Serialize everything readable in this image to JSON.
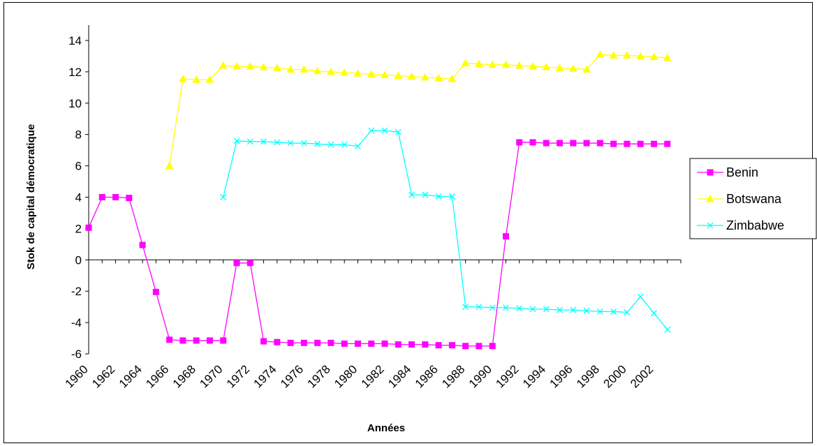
{
  "chart_data": {
    "type": "line",
    "title": "",
    "xlabel": "Années",
    "ylabel": "Stok de capital démocratique",
    "ylim": [
      -6,
      14
    ],
    "yticks": [
      14,
      12,
      10,
      8,
      6,
      4,
      2,
      0,
      -2,
      -4,
      -6
    ],
    "xlim": [
      1960,
      2004
    ],
    "xtick_labels": [
      "1960",
      "1962",
      "1964",
      "1966",
      "1968",
      "1970",
      "1972",
      "1974",
      "1976",
      "1978",
      "1980",
      "1982",
      "1984",
      "1986",
      "1988",
      "1990",
      "1992",
      "1994",
      "1996",
      "1998",
      "2000",
      "2002"
    ],
    "grid": false,
    "legend_position": "right",
    "x": [
      1960,
      1961,
      1962,
      1963,
      1964,
      1965,
      1966,
      1967,
      1968,
      1969,
      1970,
      1971,
      1972,
      1973,
      1974,
      1975,
      1976,
      1977,
      1978,
      1979,
      1980,
      1981,
      1982,
      1983,
      1984,
      1985,
      1986,
      1987,
      1988,
      1989,
      1990,
      1991,
      1992,
      1993,
      1994,
      1995,
      1996,
      1997,
      1998,
      1999,
      2000,
      2001,
      2002,
      2003,
      2004
    ],
    "series": [
      {
        "name": "Benin",
        "color": "#ff00ff",
        "marker": "square",
        "values": [
          2.05,
          4.0,
          4.0,
          3.95,
          0.95,
          -2.05,
          -5.1,
          -5.15,
          -5.15,
          -5.15,
          -5.15,
          -0.2,
          -0.2,
          -5.2,
          -5.25,
          -5.3,
          -5.3,
          -5.3,
          -5.3,
          -5.35,
          -5.35,
          -5.35,
          -5.35,
          -5.4,
          -5.4,
          -5.4,
          -5.45,
          -5.45,
          -5.5,
          -5.5,
          -5.5,
          1.5,
          7.5,
          7.5,
          7.45,
          7.45,
          7.45,
          7.45,
          7.45,
          7.4,
          7.4,
          7.4,
          7.4,
          7.4,
          null
        ]
      },
      {
        "name": "Botswana",
        "color": "#ffff00",
        "marker": "triangle",
        "values": [
          null,
          null,
          null,
          null,
          null,
          null,
          6.0,
          11.55,
          11.5,
          11.5,
          12.4,
          12.35,
          12.35,
          12.3,
          12.25,
          12.15,
          12.15,
          12.05,
          12.0,
          11.95,
          11.9,
          11.85,
          11.8,
          11.75,
          11.7,
          11.65,
          11.6,
          11.55,
          12.55,
          12.5,
          12.45,
          12.45,
          12.4,
          12.35,
          12.3,
          12.25,
          12.2,
          12.15,
          13.1,
          13.05,
          13.05,
          13.0,
          12.95,
          12.9,
          null
        ]
      },
      {
        "name": "Zimbabwe",
        "color": "#00ffff",
        "marker": "x",
        "values": [
          null,
          null,
          null,
          null,
          null,
          null,
          null,
          null,
          null,
          null,
          4.0,
          7.6,
          7.55,
          7.55,
          7.5,
          7.45,
          7.45,
          7.4,
          7.35,
          7.35,
          7.25,
          8.25,
          8.25,
          8.15,
          4.15,
          4.15,
          4.05,
          4.05,
          -3.0,
          -3.0,
          -3.05,
          -3.05,
          -3.1,
          -3.15,
          -3.15,
          -3.2,
          -3.2,
          -3.25,
          -3.3,
          -3.3,
          -3.35,
          -2.35,
          -3.4,
          -4.45,
          null
        ]
      }
    ]
  }
}
